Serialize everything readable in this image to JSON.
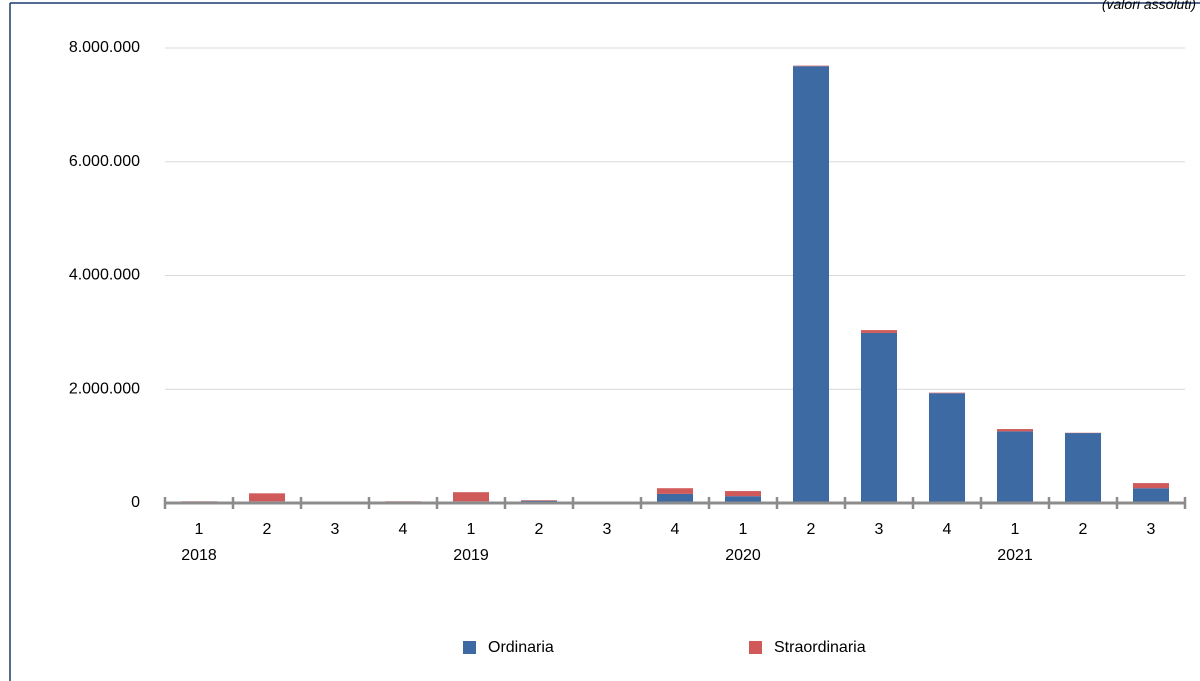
{
  "chart_data": {
    "type": "stacked_bar",
    "note": "(valori assoluti)",
    "categories": [
      "1",
      "2",
      "3",
      "4",
      "1",
      "2",
      "3",
      "4",
      "1",
      "2",
      "3",
      "4",
      "1",
      "2",
      "3"
    ],
    "years": [
      "2018",
      null,
      null,
      null,
      "2019",
      null,
      null,
      null,
      "2020",
      null,
      null,
      null,
      "2021",
      null,
      null
    ],
    "series": [
      {
        "name": "Ordinaria",
        "color": "#3e6aa3",
        "values": [
          20000,
          30000,
          15000,
          25000,
          30000,
          40000,
          5000,
          160000,
          120000,
          7680000,
          2990000,
          1930000,
          1260000,
          1230000,
          260000
        ]
      },
      {
        "name": "Straordinaria",
        "color": "#d05a5a",
        "values": [
          10000,
          140000,
          10000,
          5000,
          160000,
          10000,
          5000,
          100000,
          90000,
          10000,
          50000,
          10000,
          40000,
          5000,
          90000
        ]
      }
    ],
    "ylim": [
      0,
      8000000
    ],
    "yticks": [
      0,
      {
        "value": 2000000,
        "label": "2.000.000"
      },
      {
        "value": 4000000,
        "label": "4.000.000"
      },
      {
        "value": 6000000,
        "label": "6.000.000"
      },
      {
        "value": 8000000,
        "label": "8.000.000"
      }
    ],
    "grid": true
  }
}
